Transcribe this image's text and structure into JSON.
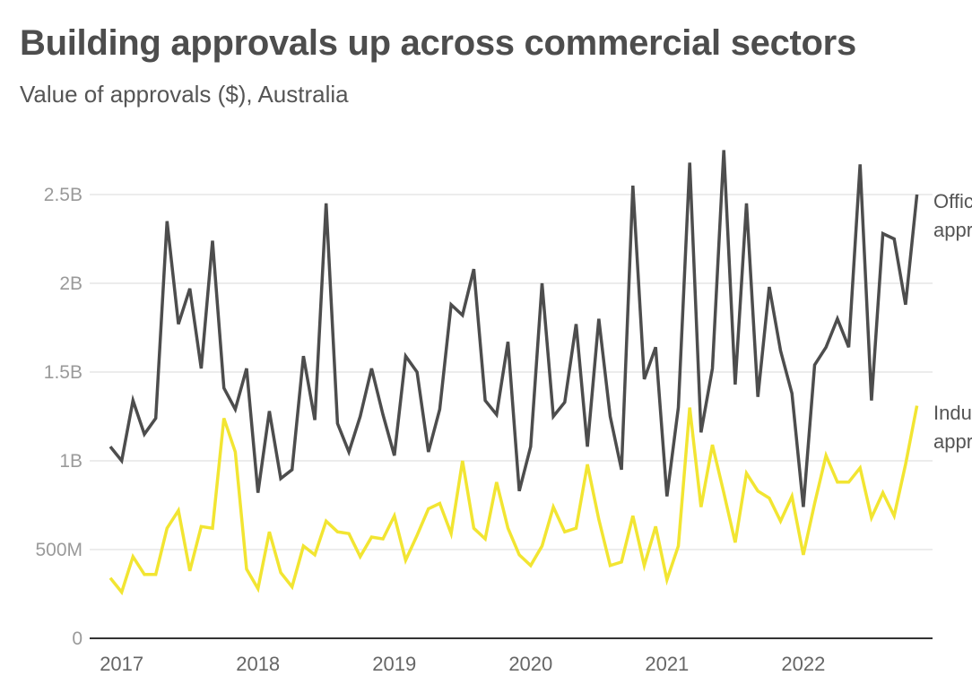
{
  "chart_data": {
    "type": "line",
    "title": "Building approvals up across commercial sectors",
    "subtitle": "Value of approvals ($), Australia",
    "xlabel": "",
    "ylabel": "",
    "ylim": [
      0,
      2500000000
    ],
    "yticks": [
      0,
      500000000,
      1000000000,
      1500000000,
      2000000000,
      2500000000
    ],
    "ytick_labels": [
      "0",
      "500M",
      "1B",
      "1.5B",
      "2B",
      "2.5B"
    ],
    "xtick_labels": [
      "2017",
      "2018",
      "2019",
      "2020",
      "2021",
      "2022"
    ],
    "grid": true,
    "legend": "direct labels at right end of lines",
    "x_start": "2016-12",
    "x_frequency": "monthly",
    "series": [
      {
        "name": "Office approvals",
        "label_lines": [
          "Office",
          "approvals"
        ],
        "color": "#4d4d4d",
        "values_billion": [
          1.08,
          1.0,
          1.34,
          1.15,
          1.24,
          2.35,
          1.77,
          1.97,
          1.52,
          2.24,
          1.41,
          1.29,
          1.52,
          0.82,
          1.28,
          0.9,
          0.95,
          1.59,
          1.23,
          2.45,
          1.21,
          1.05,
          1.25,
          1.52,
          1.26,
          1.03,
          1.59,
          1.5,
          1.05,
          1.29,
          1.88,
          1.82,
          2.08,
          1.34,
          1.26,
          1.67,
          0.83,
          1.08,
          2.0,
          1.25,
          1.33,
          1.77,
          1.08,
          1.8,
          1.25,
          0.95,
          2.55,
          1.46,
          1.64,
          0.8,
          1.3,
          2.68,
          1.16,
          1.52,
          2.75,
          1.43,
          2.45,
          1.36,
          1.98,
          1.62,
          1.38,
          0.74,
          1.54,
          1.64,
          1.8,
          1.64,
          2.67,
          1.34,
          2.28,
          2.25,
          1.88,
          2.5
        ]
      },
      {
        "name": "Industrial approvals",
        "label_lines": [
          "Industrial",
          "approvals"
        ],
        "color": "#f2e532",
        "values_billion": [
          0.34,
          0.26,
          0.46,
          0.36,
          0.36,
          0.62,
          0.72,
          0.38,
          0.63,
          0.62,
          1.24,
          1.05,
          0.39,
          0.28,
          0.6,
          0.37,
          0.29,
          0.52,
          0.47,
          0.66,
          0.6,
          0.59,
          0.46,
          0.57,
          0.56,
          0.69,
          0.44,
          0.58,
          0.73,
          0.76,
          0.59,
          1.0,
          0.62,
          0.56,
          0.88,
          0.62,
          0.47,
          0.41,
          0.52,
          0.74,
          0.6,
          0.62,
          0.98,
          0.67,
          0.41,
          0.43,
          0.69,
          0.41,
          0.63,
          0.33,
          0.52,
          1.3,
          0.74,
          1.09,
          0.82,
          0.54,
          0.93,
          0.83,
          0.79,
          0.66,
          0.8,
          0.47,
          0.76,
          1.03,
          0.88,
          0.88,
          0.96,
          0.68,
          0.82,
          0.69,
          0.98,
          1.31
        ]
      }
    ]
  }
}
